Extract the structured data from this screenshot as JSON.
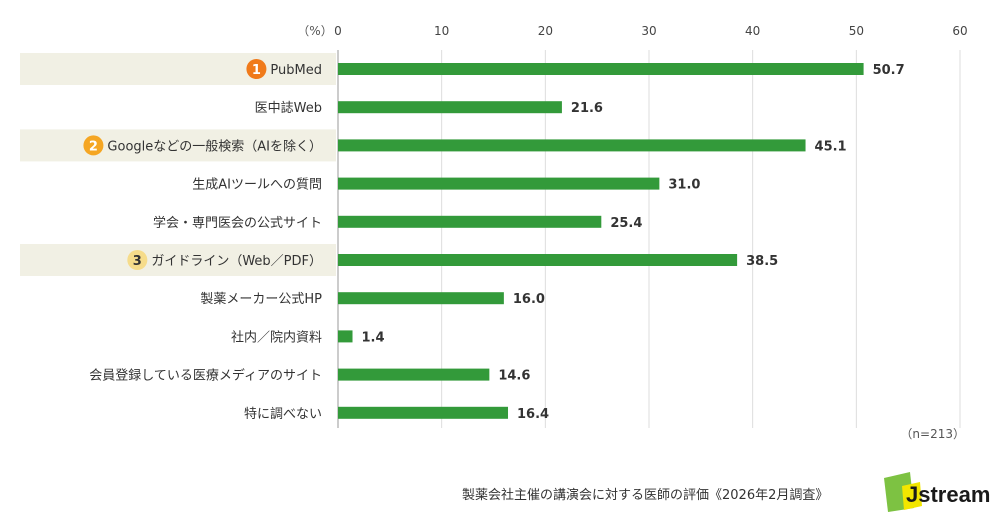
{
  "chart_data": {
    "type": "bar",
    "orientation": "horizontal",
    "unit_label": "（%）",
    "xlim": [
      0,
      60
    ],
    "x_ticks": [
      "0",
      "10",
      "20",
      "30",
      "40",
      "50",
      "60"
    ],
    "grid": true,
    "categories": [
      "PubMed",
      "医中誌Web",
      "Googleなどの一般検索（AIを除く）",
      "生成AIツールへの質問",
      "学会・専門医会の公式サイト",
      "ガイドライン（Web／PDF）",
      "製薬メーカー公式HP",
      "社内／院内資料",
      "会員登録している医療メディアのサイト",
      "特に調べない"
    ],
    "values": [
      50.7,
      21.6,
      45.1,
      31.0,
      25.4,
      38.5,
      16.0,
      1.4,
      14.6,
      16.4
    ],
    "value_labels": [
      "50.7",
      "21.6",
      "45.1",
      "31.0",
      "25.4",
      "38.5",
      "16.0",
      "1.4",
      "14.6",
      "16.4"
    ],
    "ranks": [
      {
        "index": 0,
        "label": "1",
        "color": "#f07a1a"
      },
      {
        "index": 2,
        "label": "2",
        "color": "#f5a623"
      },
      {
        "index": 5,
        "label": "3",
        "color": "#f6dc8a"
      }
    ],
    "bar_color": "#339a3a",
    "highlight_color": "#f1f0e4",
    "sample_note": "（n=213）"
  },
  "footer": "製薬会社主催の講演会に対する医師の評価《2026年2月調査》",
  "logo": {
    "text": "Jstream",
    "colors": {
      "green": "#7dc242",
      "yellow": "#f2e600",
      "dark": "#1a1a1a"
    }
  }
}
